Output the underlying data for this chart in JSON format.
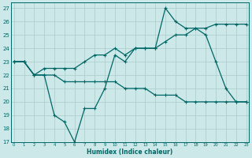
{
  "xlabel": "Humidex (Indice chaleur)",
  "x": [
    0,
    1,
    2,
    3,
    4,
    5,
    6,
    7,
    8,
    9,
    10,
    11,
    12,
    13,
    14,
    15,
    16,
    17,
    18,
    19,
    20,
    21,
    22,
    23
  ],
  "series": [
    [
      23,
      23,
      22,
      22,
      19,
      18.5,
      17,
      19.5,
      19.5,
      21,
      23.5,
      23,
      24,
      24,
      24,
      27,
      26,
      25.5,
      25.5,
      25,
      23,
      21,
      20,
      20
    ],
    [
      23,
      23,
      22,
      22.5,
      22.5,
      22.5,
      22.5,
      23,
      23.5,
      23.5,
      24,
      23.5,
      24,
      24,
      24,
      24.5,
      25,
      25,
      25.5,
      25.5,
      25.8,
      25.8,
      25.8,
      25.8
    ],
    [
      23,
      23,
      22,
      22,
      22,
      21.5,
      21.5,
      21.5,
      21.5,
      21.5,
      21.5,
      21,
      21,
      21,
      20.5,
      20.5,
      20.5,
      20,
      20,
      20,
      20,
      20,
      20,
      20
    ]
  ],
  "color": "#006666",
  "ylim": [
    17,
    27.4
  ],
  "yticks": [
    17,
    18,
    19,
    20,
    21,
    22,
    23,
    24,
    25,
    26,
    27
  ],
  "xlim": [
    -0.3,
    23.3
  ],
  "xticks": [
    0,
    1,
    2,
    3,
    4,
    5,
    6,
    7,
    8,
    9,
    10,
    11,
    12,
    13,
    14,
    15,
    16,
    17,
    18,
    19,
    20,
    21,
    22,
    23
  ],
  "bg_color": "#cce8e8",
  "grid_color": "#aacccc",
  "line_width": 0.9,
  "marker_size": 3.0
}
